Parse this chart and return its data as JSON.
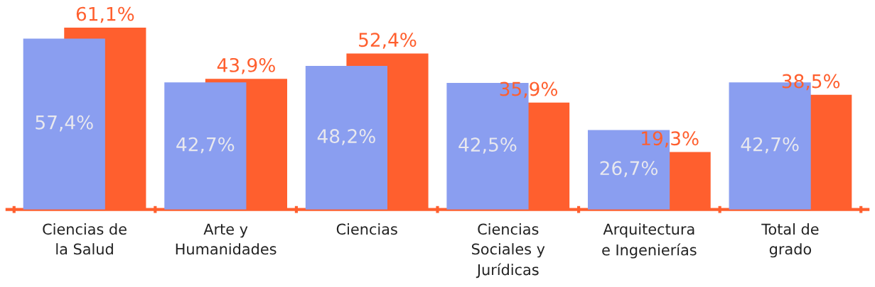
{
  "chart_data": {
    "type": "bar",
    "categories": [
      "Ciencias de\nla Salud",
      "Arte y\nHumanidades",
      "Ciencias",
      "Ciencias\nSociales y\nJurídicas",
      "Arquitectura\ne Ingenierías",
      "Total de\ngrado"
    ],
    "series": [
      {
        "color": "#8a9ef0",
        "values": [
          57.4,
          42.7,
          48.2,
          42.5,
          26.7,
          42.7
        ],
        "value_labels": [
          "57,4%",
          "42,7%",
          "48,2%",
          "42,5%",
          "26,7%",
          "42,7%"
        ]
      },
      {
        "color": "#ff5f2e",
        "values": [
          61.1,
          43.9,
          52.4,
          35.9,
          19.3,
          38.5
        ],
        "value_labels": [
          "61,1%",
          "43,9%",
          "52,4%",
          "35,9%",
          "19,3%",
          "38,5%"
        ]
      }
    ],
    "grid": false,
    "legend": false
  }
}
